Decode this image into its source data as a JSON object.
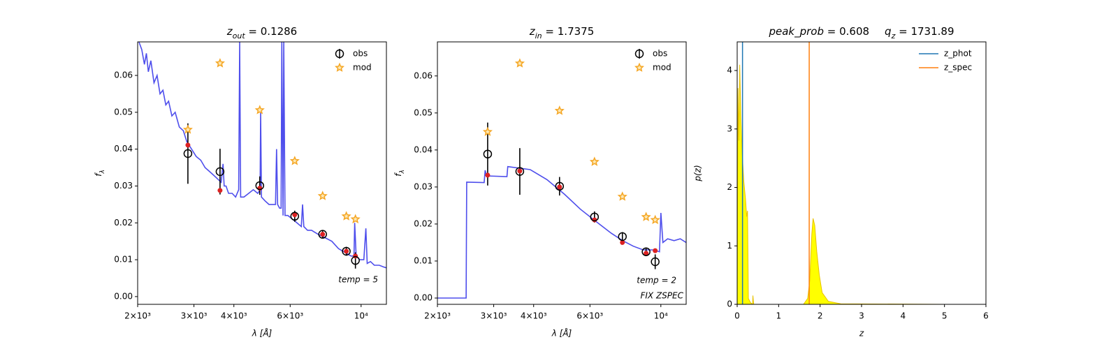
{
  "chart_data": [
    {
      "type": "sed",
      "title": [
        "z",
        "out",
        " = 0.1286"
      ],
      "xlabel": "λ [Å]",
      "ylabel": [
        "f",
        "λ"
      ],
      "xscale": "log",
      "xlim": [
        2000,
        12000
      ],
      "xticks": [
        {
          "value": 2000,
          "label": "2×10³"
        },
        {
          "value": 3000,
          "label": "3×10³"
        },
        {
          "value": 4000,
          "label": "4×10³"
        },
        {
          "value": 6000,
          "label": "6×10³"
        },
        {
          "value": 10000,
          "label": "10⁴"
        }
      ],
      "ylim": [
        -0.0021,
        0.0691
      ],
      "yticks": [
        {
          "value": 0,
          "label": "0.00"
        },
        0.01,
        0.02,
        0.03,
        0.04,
        0.05,
        0.06
      ],
      "legend": "upper right",
      "annotations": [
        "temp = 5"
      ],
      "x": [
        2872,
        3620,
        4820,
        6200,
        7580,
        8990,
        9600
      ],
      "series": [
        {
          "name": "obs",
          "color": "#000000",
          "values": [
            0.0388,
            0.0339,
            0.0301,
            0.0218,
            0.0169,
            0.0123,
            0.0098
          ],
          "errors": [
            0.0082,
            0.0062,
            0.0025,
            0.0015,
            0.001,
            0.0012,
            0.0022
          ]
        },
        {
          "name": "mod",
          "color": "#f5a623",
          "values": [
            0.0453,
            0.0633,
            0.0506,
            0.0368,
            0.0273,
            0.0218,
            0.021
          ]
        }
      ],
      "model_points": {
        "color": "#dd2222",
        "values": [
          0.0411,
          0.0288,
          0.0294,
          0.0222,
          0.0169,
          0.0123,
          0.011
        ]
      },
      "spectrum": {
        "color": "#3b3bea",
        "x": [
          2020,
          2060,
          2100,
          2130,
          2160,
          2200,
          2250,
          2300,
          2350,
          2400,
          2450,
          2500,
          2560,
          2620,
          2700,
          2780,
          2850,
          2950,
          3050,
          3150,
          3250,
          3350,
          3450,
          3550,
          3650,
          3700,
          3730,
          3780,
          3850,
          3950,
          4050,
          4140,
          4170,
          4200,
          4300,
          4450,
          4600,
          4750,
          4830,
          4850,
          4880,
          5000,
          5150,
          5300,
          5400,
          5440,
          5480,
          5560,
          5620,
          5650,
          5700,
          5730,
          5780,
          5900,
          6100,
          6300,
          6500,
          6560,
          6620,
          6800,
          7000,
          7300,
          7700,
          8100,
          8500,
          8900,
          9300,
          9500,
          9550,
          9650,
          9900,
          10200,
          10350,
          10450,
          10700,
          11000,
          11400,
          11800,
          12000
        ],
        "values": [
          0.069,
          0.067,
          0.063,
          0.066,
          0.061,
          0.064,
          0.058,
          0.06,
          0.055,
          0.056,
          0.052,
          0.053,
          0.049,
          0.05,
          0.046,
          0.045,
          0.042,
          0.04,
          0.038,
          0.037,
          0.035,
          0.034,
          0.033,
          0.032,
          0.031,
          0.036,
          0.03,
          0.03,
          0.028,
          0.028,
          0.027,
          0.029,
          0.069,
          0.027,
          0.027,
          0.028,
          0.029,
          0.028,
          0.029,
          0.05,
          0.027,
          0.026,
          0.025,
          0.025,
          0.025,
          0.04,
          0.025,
          0.024,
          0.024,
          0.069,
          0.022,
          0.069,
          0.022,
          0.022,
          0.021,
          0.02,
          0.019,
          0.025,
          0.019,
          0.018,
          0.018,
          0.017,
          0.016,
          0.015,
          0.013,
          0.012,
          0.011,
          0.011,
          0.02,
          0.011,
          0.01,
          0.01,
          0.0185,
          0.009,
          0.0095,
          0.0085,
          0.0085,
          0.008,
          0.0078
        ]
      }
    },
    {
      "type": "sed",
      "title": [
        "z",
        "in",
        " = 1.7375"
      ],
      "xlabel": "λ [Å]",
      "ylabel": [
        "f",
        "λ"
      ],
      "xscale": "log",
      "xlim": [
        2000,
        12000
      ],
      "xticks": [
        {
          "value": 2000,
          "label": "2×10³"
        },
        {
          "value": 3000,
          "label": "3×10³"
        },
        {
          "value": 4000,
          "label": "4×10³"
        },
        {
          "value": 6000,
          "label": "6×10³"
        },
        {
          "value": 10000,
          "label": "10⁴"
        }
      ],
      "ylim": [
        -0.0017,
        0.0692
      ],
      "yticks": [
        {
          "value": 0,
          "label": "0.00"
        },
        0.01,
        0.02,
        0.03,
        0.04,
        0.05,
        0.06
      ],
      "legend": "upper right",
      "annotations": [
        "temp = 2",
        "FIX ZSPEC"
      ],
      "x": [
        2872,
        3620,
        4820,
        6200,
        7580,
        8990,
        9600
      ],
      "series": [
        {
          "name": "obs",
          "color": "#000000",
          "values": [
            0.0389,
            0.0342,
            0.0302,
            0.0219,
            0.0166,
            0.0125,
            0.0098
          ],
          "errors": [
            0.0085,
            0.0063,
            0.0025,
            0.0015,
            0.0012,
            0.001,
            0.002
          ]
        },
        {
          "name": "mod",
          "color": "#f5a623",
          "values": [
            0.0449,
            0.0634,
            0.0506,
            0.0368,
            0.0274,
            0.0219,
            0.0211
          ]
        }
      ],
      "model_points": {
        "color": "#dd2222",
        "values": [
          0.0332,
          0.0343,
          0.03,
          0.0211,
          0.015,
          0.0121,
          0.0128
        ]
      },
      "spectrum": {
        "color": "#3b3bea",
        "x": [
          2000,
          2460,
          2470,
          2800,
          2820,
          2850,
          3300,
          3320,
          3900,
          4400,
          5000,
          5600,
          6200,
          7000,
          7600,
          8200,
          8800,
          9500,
          9900,
          10000,
          10150,
          10500,
          11000,
          11500,
          12000
        ],
        "values": [
          0,
          0,
          0.0313,
          0.0312,
          0.0345,
          0.033,
          0.0328,
          0.0355,
          0.0347,
          0.032,
          0.028,
          0.024,
          0.021,
          0.0175,
          0.0155,
          0.014,
          0.013,
          0.013,
          0.0125,
          0.023,
          0.015,
          0.016,
          0.0155,
          0.016,
          0.015
        ]
      }
    },
    {
      "type": "pdf",
      "title": [
        "peak_prob",
        " = 0.608",
        "q",
        "z",
        " = 1731.89"
      ],
      "xlabel": "z",
      "ylabel": "p(z)",
      "xlim": [
        0,
        6
      ],
      "xticks": [
        0,
        1,
        2,
        3,
        4,
        5,
        6
      ],
      "ylim": [
        0,
        4.49
      ],
      "yticks": [
        0,
        1,
        2,
        3,
        4
      ],
      "legend": "upper right",
      "area": {
        "color": "#ffff00",
        "edge": "#e8c200",
        "x": [
          0,
          0.02,
          0.04,
          0.06,
          0.09,
          0.12,
          0.16,
          0.2,
          0.23,
          0.25,
          0.27,
          0.32,
          0.37,
          0.38,
          0.4,
          1.6,
          1.7,
          1.75,
          1.8,
          1.83,
          1.87,
          1.92,
          1.98,
          2.05,
          2.2,
          2.5,
          5
        ],
        "values": [
          0,
          3.7,
          2.8,
          4.1,
          3.2,
          2.6,
          2.1,
          1.8,
          1.5,
          1.6,
          0.1,
          0.03,
          0,
          0.15,
          0,
          0,
          0.1,
          0.4,
          1.2,
          1.47,
          1.35,
          0.9,
          0.5,
          0.2,
          0.05,
          0.01,
          0
        ]
      },
      "series": [
        {
          "name": "z_phot",
          "color": "#1f77b4",
          "x": 0.1286
        },
        {
          "name": "z_spec",
          "color": "#ff7f0e",
          "x": 1.7375
        }
      ]
    }
  ]
}
